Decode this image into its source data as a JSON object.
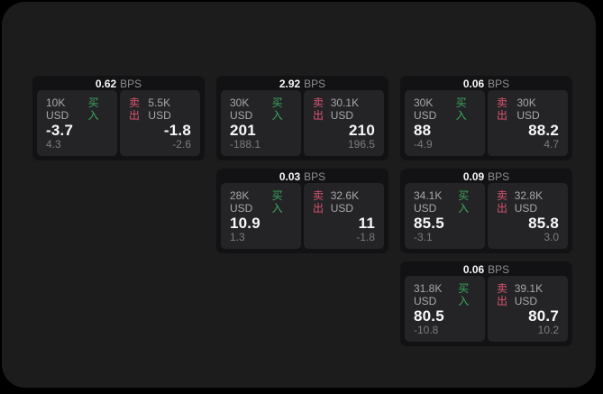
{
  "labels": {
    "bps_unit": "BPS",
    "buy": "买入",
    "sell": "卖出"
  },
  "colors": {
    "background": "#000000",
    "surface": "#1c1c1d",
    "card": "#121214",
    "panel": "#242427",
    "buy": "#3aa85c",
    "sell": "#da5570"
  },
  "cards": [
    {
      "bps": "0.62",
      "buy": {
        "amount": "10K USD",
        "price": "-3.7",
        "delta": "4.3"
      },
      "sell": {
        "amount": "5.5K USD",
        "price": "-1.8",
        "delta": "-2.6"
      }
    },
    {
      "bps": "2.92",
      "buy": {
        "amount": "30K USD",
        "price": "201",
        "delta": "-188.1"
      },
      "sell": {
        "amount": "30.1K USD",
        "price": "210",
        "delta": "196.5"
      }
    },
    {
      "bps": "0.06",
      "buy": {
        "amount": "30K USD",
        "price": "88",
        "delta": "-4.9"
      },
      "sell": {
        "amount": "30K USD",
        "price": "88.2",
        "delta": "4.7"
      }
    },
    {
      "bps": "0.03",
      "buy": {
        "amount": "28K USD",
        "price": "10.9",
        "delta": "1.3"
      },
      "sell": {
        "amount": "32.6K USD",
        "price": "11",
        "delta": "-1.8"
      }
    },
    {
      "bps": "0.09",
      "buy": {
        "amount": "34.1K USD",
        "price": "85.5",
        "delta": "-3.1"
      },
      "sell": {
        "amount": "32.8K USD",
        "price": "85.8",
        "delta": "3.0"
      }
    },
    {
      "bps": "0.06",
      "buy": {
        "amount": "31.8K USD",
        "price": "80.5",
        "delta": "-10.8"
      },
      "sell": {
        "amount": "39.1K USD",
        "price": "80.7",
        "delta": "10.2"
      }
    }
  ]
}
